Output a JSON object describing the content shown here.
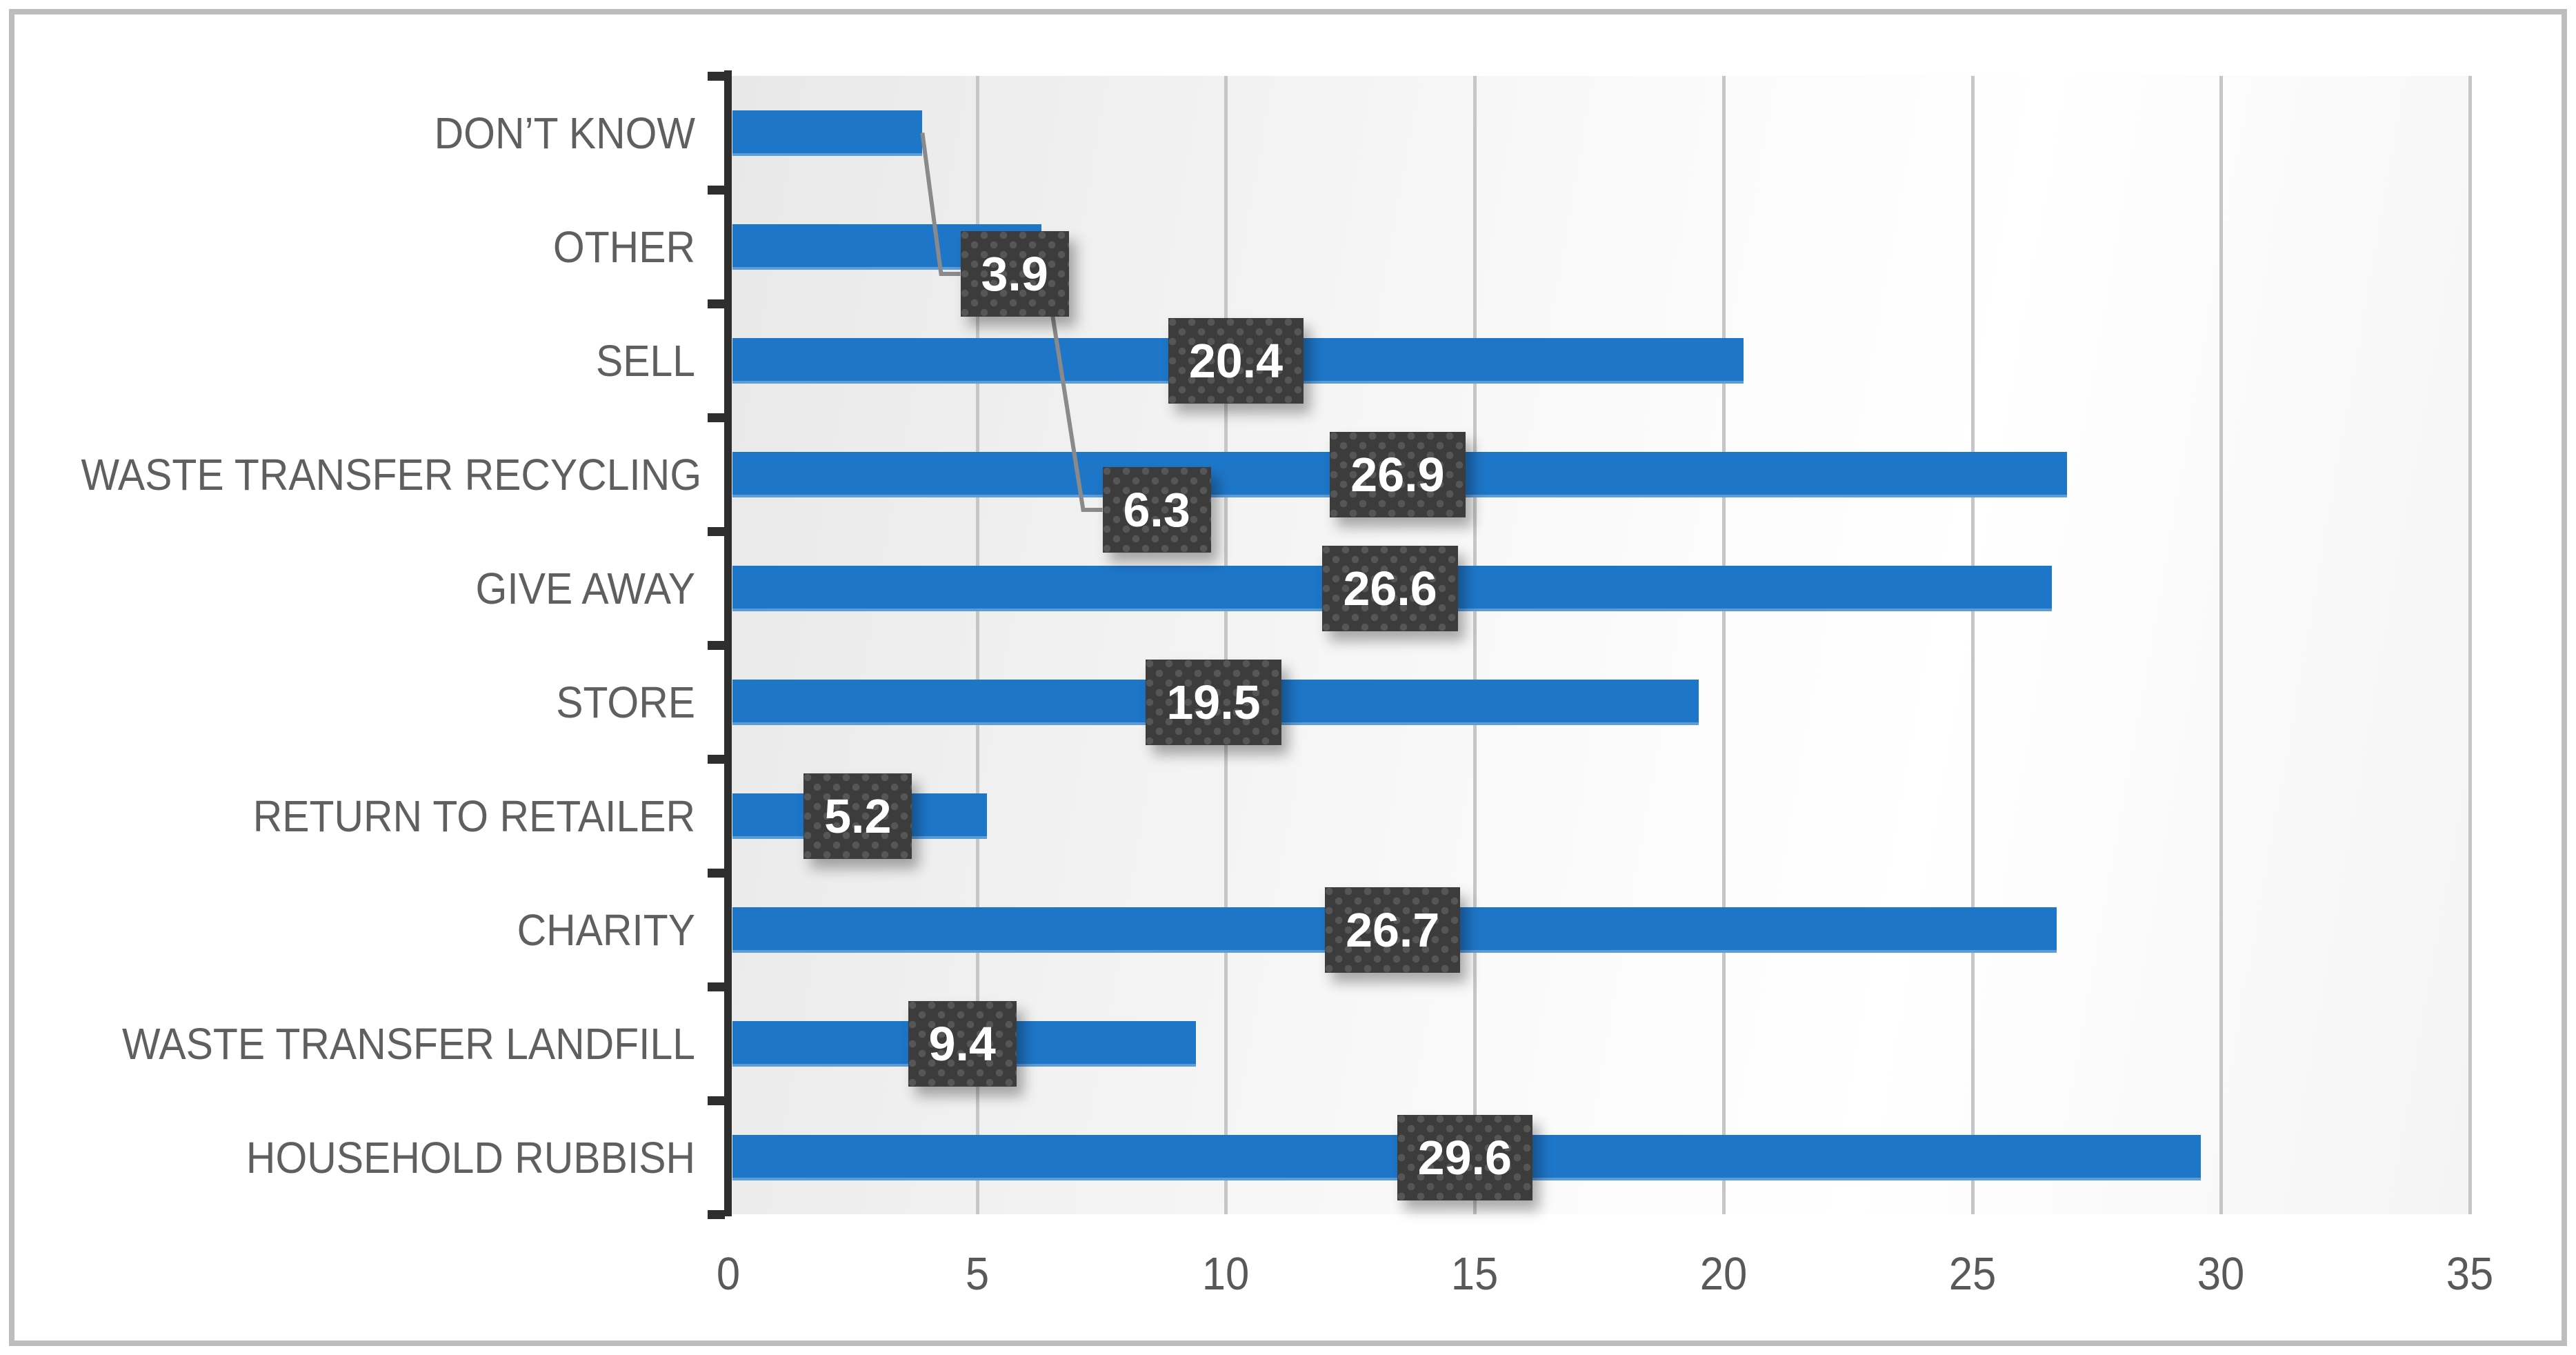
{
  "chart_data": {
    "type": "bar",
    "orientation": "horizontal",
    "title": "",
    "xlabel": "",
    "ylabel": "",
    "categories": [
      "DON’T KNOW",
      "OTHER",
      "SELL",
      "WASTE TRANSFER RECYCLING",
      "GIVE AWAY",
      "STORE",
      "RETURN TO RETAILER",
      "CHARITY",
      "WASTE TRANSFER LANDFILL",
      "HOUSEHOLD RUBBISH"
    ],
    "values": [
      3.9,
      6.3,
      20.4,
      26.9,
      26.6,
      19.5,
      5.2,
      26.7,
      9.4,
      29.6
    ],
    "data_labels": [
      "3.9",
      "6.3",
      "20.4",
      "26.9",
      "26.6",
      "19.5",
      "5.2",
      "26.7",
      "9.4",
      "29.6"
    ],
    "xlim": [
      0,
      35
    ],
    "x_ticks": [
      0,
      5,
      10,
      15,
      20,
      25,
      30,
      35
    ],
    "grid": "vertical-major",
    "legend": "none",
    "label_style": "dark dotted boxes centered on bars, white bold text, drop shadow",
    "callouts": [
      {
        "category_index": 0,
        "value": 3.9,
        "label_cx": 1471,
        "label_cy": 397,
        "note": "label moved below-right of bar with elbow leader line"
      },
      {
        "category_index": 1,
        "value": 6.3,
        "label_cx": 1677,
        "label_cy": 739,
        "note": "label moved below-right of bar with diagonal leader line"
      }
    ],
    "colors": {
      "bar": "#1e76c8",
      "bar_bottom_edge": "#5b9ad6",
      "label_box": "#3c3c3c",
      "label_dot": "#565656",
      "label_text": "#ffffff",
      "leader_line": "#8a8a8a",
      "gridline": "#c6c6c6",
      "axis_line": "#2e2e2e",
      "category_text": "#5f5f5f",
      "tick_text": "#595959",
      "frame_border": "#bdbdbd",
      "plot_bg_left": "#e8e8e8",
      "plot_bg_right": "#ffffff"
    }
  }
}
